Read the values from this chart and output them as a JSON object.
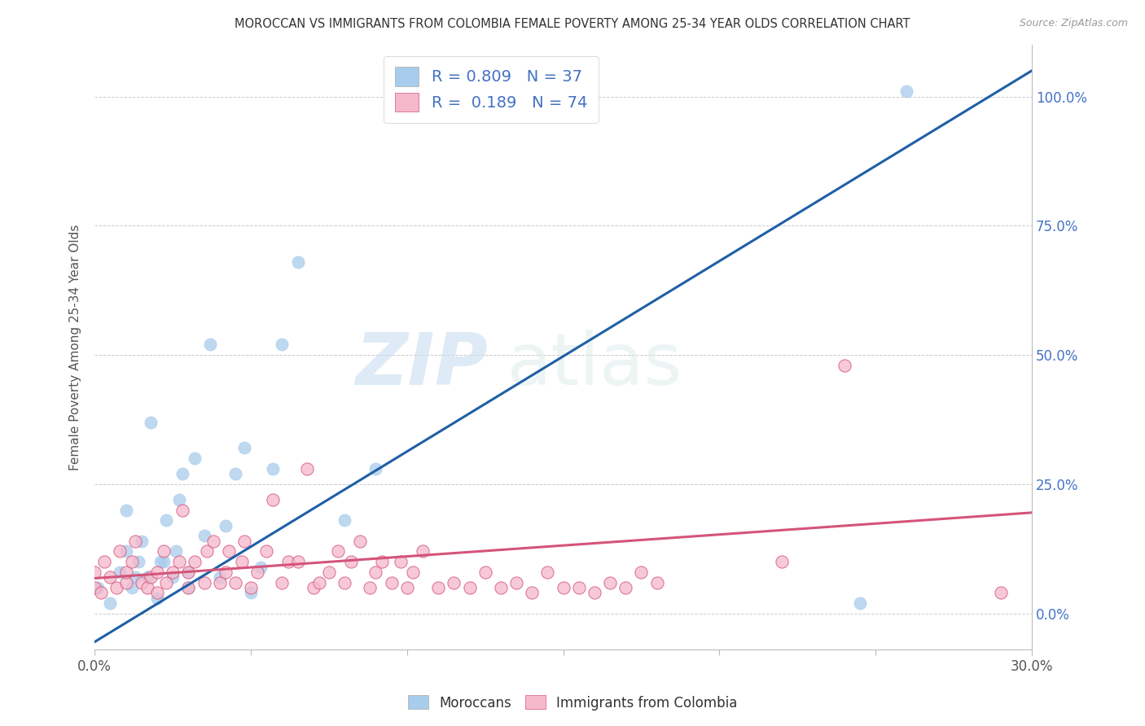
{
  "title": "MOROCCAN VS IMMIGRANTS FROM COLOMBIA FEMALE POVERTY AMONG 25-34 YEAR OLDS CORRELATION CHART",
  "source": "Source: ZipAtlas.com",
  "ylabel": "Female Poverty Among 25-34 Year Olds",
  "xlim": [
    0.0,
    0.3
  ],
  "ylim": [
    -0.07,
    1.1
  ],
  "yticks": [
    0.0,
    0.25,
    0.5,
    0.75,
    1.0
  ],
  "right_ytick_labels": [
    "0.0%",
    "25.0%",
    "50.0%",
    "75.0%",
    "100.0%"
  ],
  "xticks": [
    0.0,
    0.05,
    0.1,
    0.15,
    0.2,
    0.25,
    0.3
  ],
  "xtick_labels": [
    "0.0%",
    "",
    "",
    "",
    "",
    "",
    "30.0%"
  ],
  "legend1_R": "0.809",
  "legend1_N": "37",
  "legend2_R": "0.189",
  "legend2_N": "74",
  "blue_color": "#a8ccec",
  "blue_line_color": "#1f5fa6",
  "pink_color": "#f5b8cb",
  "pink_line_color": "#d4547a",
  "pink_edge_color": "#d4547a",
  "watermark_zip": "ZIP",
  "watermark_atlas": "atlas",
  "blue_dots_x": [
    0.001,
    0.005,
    0.008,
    0.01,
    0.01,
    0.012,
    0.013,
    0.014,
    0.015,
    0.017,
    0.018,
    0.02,
    0.021,
    0.022,
    0.023,
    0.025,
    0.026,
    0.027,
    0.028,
    0.03,
    0.03,
    0.032,
    0.035,
    0.037,
    0.04,
    0.042,
    0.045,
    0.048,
    0.05,
    0.053,
    0.057,
    0.06,
    0.065,
    0.08,
    0.09,
    0.245,
    0.26
  ],
  "blue_dots_y": [
    0.05,
    0.02,
    0.08,
    0.12,
    0.2,
    0.05,
    0.07,
    0.1,
    0.14,
    0.07,
    0.37,
    0.03,
    0.1,
    0.1,
    0.18,
    0.07,
    0.12,
    0.22,
    0.27,
    0.05,
    0.08,
    0.3,
    0.15,
    0.52,
    0.07,
    0.17,
    0.27,
    0.32,
    0.04,
    0.09,
    0.28,
    0.52,
    0.68,
    0.18,
    0.28,
    0.02,
    1.01
  ],
  "pink_dots_x": [
    0.0,
    0.0,
    0.002,
    0.003,
    0.005,
    0.007,
    0.008,
    0.01,
    0.01,
    0.012,
    0.013,
    0.015,
    0.017,
    0.018,
    0.02,
    0.02,
    0.022,
    0.023,
    0.025,
    0.027,
    0.028,
    0.03,
    0.03,
    0.032,
    0.035,
    0.036,
    0.038,
    0.04,
    0.042,
    0.043,
    0.045,
    0.047,
    0.048,
    0.05,
    0.052,
    0.055,
    0.057,
    0.06,
    0.062,
    0.065,
    0.068,
    0.07,
    0.072,
    0.075,
    0.078,
    0.08,
    0.082,
    0.085,
    0.088,
    0.09,
    0.092,
    0.095,
    0.098,
    0.1,
    0.102,
    0.105,
    0.11,
    0.115,
    0.12,
    0.125,
    0.13,
    0.135,
    0.14,
    0.145,
    0.15,
    0.155,
    0.16,
    0.165,
    0.17,
    0.175,
    0.18,
    0.22,
    0.24,
    0.29
  ],
  "pink_dots_y": [
    0.05,
    0.08,
    0.04,
    0.1,
    0.07,
    0.05,
    0.12,
    0.06,
    0.08,
    0.1,
    0.14,
    0.06,
    0.05,
    0.07,
    0.04,
    0.08,
    0.12,
    0.06,
    0.08,
    0.1,
    0.2,
    0.05,
    0.08,
    0.1,
    0.06,
    0.12,
    0.14,
    0.06,
    0.08,
    0.12,
    0.06,
    0.1,
    0.14,
    0.05,
    0.08,
    0.12,
    0.22,
    0.06,
    0.1,
    0.1,
    0.28,
    0.05,
    0.06,
    0.08,
    0.12,
    0.06,
    0.1,
    0.14,
    0.05,
    0.08,
    0.1,
    0.06,
    0.1,
    0.05,
    0.08,
    0.12,
    0.05,
    0.06,
    0.05,
    0.08,
    0.05,
    0.06,
    0.04,
    0.08,
    0.05,
    0.05,
    0.04,
    0.06,
    0.05,
    0.08,
    0.06,
    0.1,
    0.48,
    0.04
  ],
  "blue_line_x0": 0.0,
  "blue_line_x1": 0.3,
  "blue_line_y0": -0.055,
  "blue_line_y1": 1.05,
  "pink_line_x0": 0.0,
  "pink_line_x1": 0.3,
  "pink_line_y0": 0.068,
  "pink_line_y1": 0.195,
  "background_color": "#ffffff",
  "grid_color": "#cccccc",
  "title_color": "#333333",
  "axis_label_color": "#555555",
  "right_axis_color": "#4472c4"
}
